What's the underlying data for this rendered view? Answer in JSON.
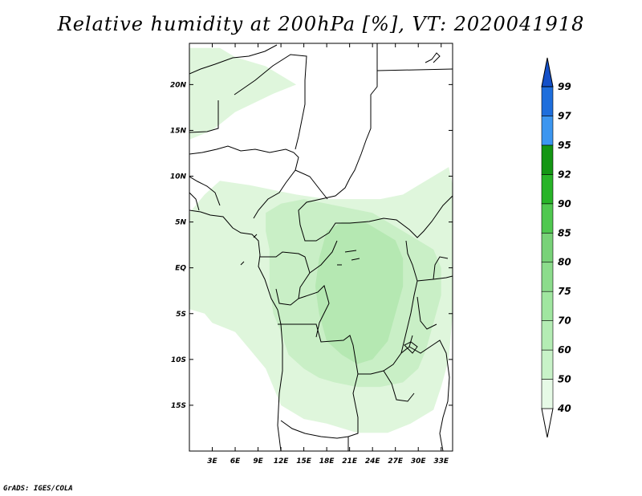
{
  "chart_data": {
    "type": "heatmap",
    "title": "Relative humidity at 200hPa [%], VT: 2020041918",
    "xlabel": "",
    "ylabel": "",
    "xlim": [
      0,
      34.5
    ],
    "ylim": [
      -20,
      24.5
    ],
    "x_ticks": [
      {
        "value": 3,
        "label": "3E"
      },
      {
        "value": 6,
        "label": "6E"
      },
      {
        "value": 9,
        "label": "9E"
      },
      {
        "value": 12,
        "label": "12E"
      },
      {
        "value": 15,
        "label": "15E"
      },
      {
        "value": 18,
        "label": "18E"
      },
      {
        "value": 21,
        "label": "21E"
      },
      {
        "value": 24,
        "label": "24E"
      },
      {
        "value": 27,
        "label": "27E"
      },
      {
        "value": 30,
        "label": "30E"
      },
      {
        "value": 33,
        "label": "33E"
      }
    ],
    "y_ticks": [
      {
        "value": 20,
        "label": "20N"
      },
      {
        "value": 15,
        "label": "15N"
      },
      {
        "value": 10,
        "label": "10N"
      },
      {
        "value": 5,
        "label": "5N"
      },
      {
        "value": 0,
        "label": "EQ"
      },
      {
        "value": -5,
        "label": "5S"
      },
      {
        "value": -10,
        "label": "10S"
      },
      {
        "value": -15,
        "label": "15S"
      }
    ],
    "colorbar": {
      "levels": [
        "40",
        "50",
        "60",
        "70",
        "75",
        "80",
        "85",
        "90",
        "92",
        "95",
        "97",
        "99"
      ],
      "colors": [
        "#ffffff",
        "#e6fae6",
        "#c8f2c8",
        "#b4ecb4",
        "#a0e6a0",
        "#8cdc8c",
        "#78d278",
        "#50c850",
        "#28b428",
        "#149614",
        "#3c96f0",
        "#1e6edc",
        "#1450c8"
      ]
    },
    "fields": [
      {
        "level": "50",
        "color": "#dff6dc",
        "polygon": [
          [
            0,
            24
          ],
          [
            4,
            24
          ],
          [
            6,
            23
          ],
          [
            10,
            22
          ],
          [
            12,
            21
          ],
          [
            14,
            20
          ],
          [
            11,
            19
          ],
          [
            6,
            17
          ],
          [
            3,
            15
          ],
          [
            0,
            14
          ]
        ]
      },
      {
        "level": "50",
        "color": "#dff6dc",
        "polygon": [
          [
            4,
            9.5
          ],
          [
            8,
            9
          ],
          [
            11,
            8.5
          ],
          [
            14,
            8
          ],
          [
            18,
            7.5
          ],
          [
            22,
            7.5
          ],
          [
            25,
            7.5
          ],
          [
            28,
            8
          ],
          [
            30,
            9
          ],
          [
            32,
            10
          ],
          [
            34,
            11
          ],
          [
            34.5,
            9
          ],
          [
            34.5,
            -5
          ],
          [
            34,
            -10
          ],
          [
            33,
            -13
          ],
          [
            32,
            -15.5
          ],
          [
            29,
            -17
          ],
          [
            26,
            -18
          ],
          [
            22,
            -18
          ],
          [
            18,
            -17
          ],
          [
            15,
            -16.5
          ],
          [
            12,
            -15
          ],
          [
            11,
            -13
          ],
          [
            10,
            -11
          ],
          [
            8,
            -9
          ],
          [
            6,
            -7
          ],
          [
            3,
            -6
          ],
          [
            2,
            -5
          ],
          [
            0,
            -4.5
          ],
          [
            0,
            6
          ],
          [
            2,
            8
          ]
        ]
      },
      {
        "level": "60",
        "color": "#c9efc6",
        "polygon": [
          [
            10,
            6
          ],
          [
            12,
            7
          ],
          [
            15,
            7.5
          ],
          [
            18,
            7
          ],
          [
            21,
            6.5
          ],
          [
            24,
            6
          ],
          [
            26,
            5
          ],
          [
            28,
            4
          ],
          [
            30,
            3
          ],
          [
            32,
            2
          ],
          [
            33,
            0
          ],
          [
            33,
            -3
          ],
          [
            32,
            -6
          ],
          [
            31,
            -9
          ],
          [
            30,
            -11
          ],
          [
            28,
            -12.5
          ],
          [
            25,
            -13
          ],
          [
            22,
            -13
          ],
          [
            19,
            -12.5
          ],
          [
            17,
            -12
          ],
          [
            15,
            -11
          ],
          [
            13,
            -9.5
          ],
          [
            12,
            -7
          ],
          [
            11,
            -5
          ],
          [
            10.5,
            -2
          ],
          [
            10.5,
            2
          ],
          [
            10,
            4
          ]
        ]
      },
      {
        "level": "70",
        "color": "#b5e8b2",
        "polygon": [
          [
            18,
            4
          ],
          [
            20,
            5
          ],
          [
            23,
            5
          ],
          [
            25,
            4
          ],
          [
            27,
            3
          ],
          [
            28,
            1
          ],
          [
            28,
            -2
          ],
          [
            27,
            -5
          ],
          [
            26,
            -8
          ],
          [
            24,
            -10
          ],
          [
            22,
            -10.5
          ],
          [
            20,
            -9.5
          ],
          [
            18,
            -8
          ],
          [
            17,
            -5
          ],
          [
            16.5,
            -2
          ],
          [
            17,
            1
          ]
        ]
      }
    ]
  },
  "credit": "GrADS: IGES/COLA"
}
